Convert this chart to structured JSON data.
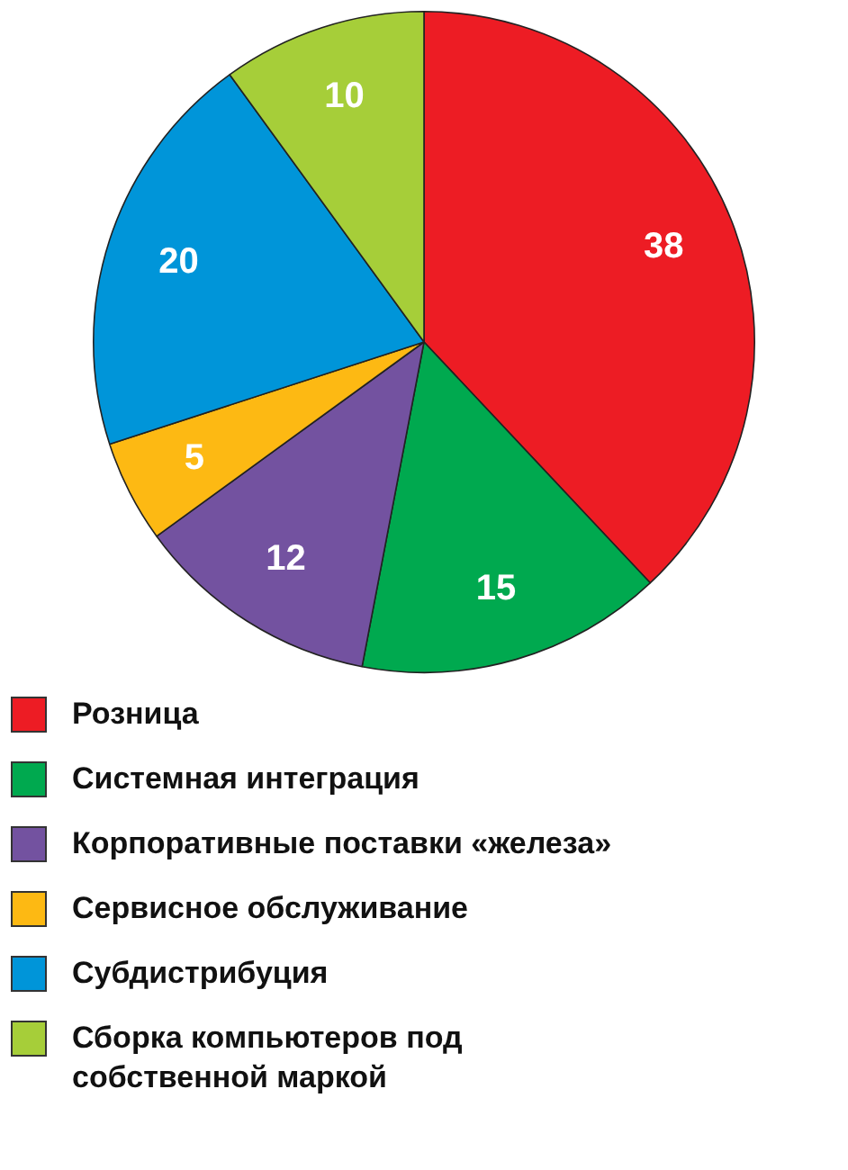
{
  "chart_data": {
    "type": "pie",
    "categories": [
      "Розница",
      "Системная интеграция",
      "Корпоративные поставки «железа»",
      "Сервисное обслуживание",
      "Субдистрибуция",
      "Сборка компьютеров под собственной маркой"
    ],
    "values": [
      38,
      15,
      12,
      5,
      20,
      10
    ],
    "colors": [
      "#ed1c24",
      "#00a94f",
      "#7352a0",
      "#fdb913",
      "#0095d9",
      "#a6ce39"
    ],
    "data_labels": true,
    "legend": "bottom"
  }
}
